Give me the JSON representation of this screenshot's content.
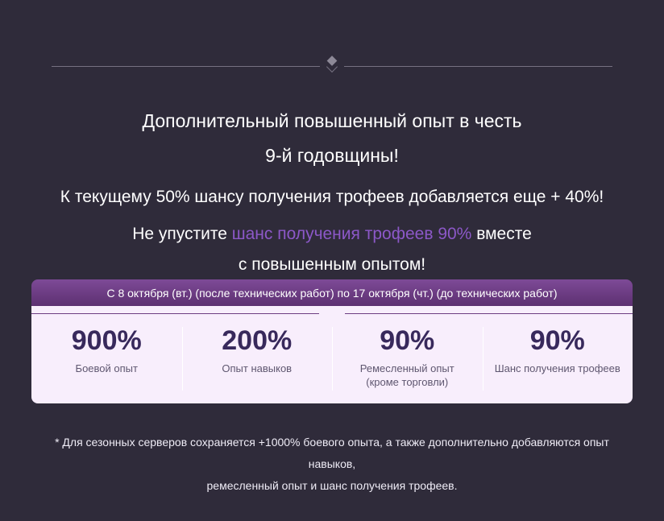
{
  "heading": {
    "line1": "Дополнительный повышенный опыт в честь",
    "line2": "9-й годовщины!"
  },
  "promo": {
    "line1": "К текущему 50% шансу получения трофеев добавляется еще + 40%!",
    "line2_pre": "Не упустите ",
    "line2_highlight": "шанс получения трофеев 90%",
    "line2_post": " вместе",
    "line3": "с повышенным опытом!"
  },
  "event_card": {
    "period": "С 8 октября (вт.) (после технических работ) по 17 октября (чт.) (до технических работ)",
    "bonuses": [
      {
        "value": "900%",
        "label": "Боевой опыт"
      },
      {
        "value": "200%",
        "label": "Опыт навыков"
      },
      {
        "value": "90%",
        "label": "Ремесленный опыт",
        "label2": "(кроме торговли)"
      },
      {
        "value": "90%",
        "label": "Шанс получения трофеев"
      }
    ]
  },
  "footnote": {
    "line1": "* Для сезонных серверов сохраняется +1000% боевого опыта, а также дополнительно добавляются опыт навыков,",
    "line2": "ремесленный опыт и шанс получения трофеев."
  },
  "colors": {
    "background": "#2f2b3a",
    "text_primary": "#ffffff",
    "highlight_purple": "#8c58c8",
    "card_header_top": "#7e4a97",
    "card_header_bottom": "#5d3071",
    "card_body": "#f8eefc",
    "bonus_value_text": "#38295c",
    "bonus_label_text": "#5f5770"
  }
}
